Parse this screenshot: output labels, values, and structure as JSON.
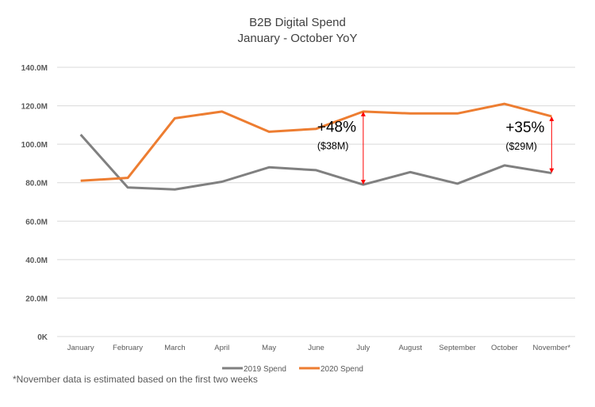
{
  "chart_data": {
    "type": "line",
    "title": "B2B Digital Spend",
    "subtitle": "January - October YoY",
    "categories": [
      "January",
      "February",
      "March",
      "April",
      "May",
      "June",
      "July",
      "August",
      "September",
      "October",
      "November*"
    ],
    "ylim": [
      0,
      140
    ],
    "yticks": [
      0,
      20,
      40,
      60,
      80,
      100,
      120,
      140
    ],
    "ytick_labels": [
      "0K",
      "20.0M",
      "40.0M",
      "60.0M",
      "80.0M",
      "100.0M",
      "120.0M",
      "140.0M"
    ],
    "grid": true,
    "legend": "bottom",
    "series": [
      {
        "name": "2019 Spend",
        "color": "#808080",
        "values": [
          105,
          77.5,
          76.5,
          80.5,
          88,
          86.5,
          79,
          85.5,
          79.5,
          89,
          85
        ]
      },
      {
        "name": "2020 Spend",
        "color": "#ED7D31",
        "values": [
          81,
          82.5,
          113.5,
          117,
          106.5,
          108,
          117,
          116,
          116,
          121,
          114.5
        ]
      }
    ],
    "annotations": [
      {
        "category": "July",
        "pct": "+48%",
        "amount": "($38M)",
        "color": "#FF0000"
      },
      {
        "category": "November*",
        "pct": "+35%",
        "amount": "($29M)",
        "color": "#FF0000"
      }
    ]
  },
  "footnote": "*November data is estimated based on the first two weeks"
}
